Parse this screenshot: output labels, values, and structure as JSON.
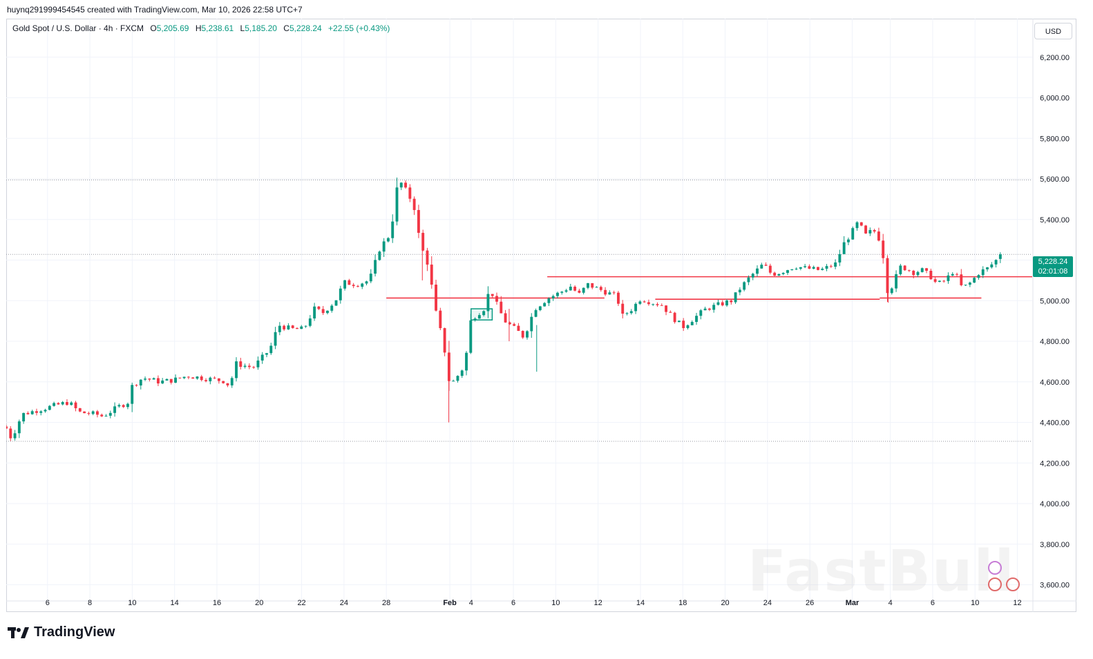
{
  "header": {
    "attribution": "huynq291999454545 created with TradingView.com, Mar 10, 2026 22:58 UTC+7"
  },
  "legend": {
    "symbol": "Gold Spot / U.S. Dollar · 4h · FXCM",
    "o_label": "O",
    "o_value": "5,205.69",
    "h_label": "H",
    "h_value": "5,238.61",
    "l_label": "L",
    "l_value": "5,185.20",
    "c_label": "C",
    "c_value": "5,228.24",
    "change": "+22.55 (+0.43%)"
  },
  "currency": "USD",
  "last_price": {
    "value": "5,228.24",
    "countdown": "02:01:08"
  },
  "brand": "TradingView",
  "watermark": "FastBull",
  "colors": {
    "up": "#089981",
    "down": "#f23645",
    "level": "#f23645",
    "grid": "#f0f3fa",
    "dotted": "#9598a1"
  },
  "chart_data": {
    "type": "candlestick",
    "title": "Gold Spot / U.S. Dollar · 4h · FXCM",
    "ylim": [
      3520,
      6390
    ],
    "y_ticks": [
      3600,
      3800,
      4000,
      4200,
      4400,
      4600,
      4800,
      5000,
      5200,
      5400,
      5600,
      5800,
      6000,
      6200
    ],
    "y_tick_labels": [
      "3,600.00",
      "3,800.00",
      "4,000.00",
      "4,200.00",
      "4,400.00",
      "4,600.00",
      "4,800.00",
      "5,000.00",
      "5,200.00",
      "5,400.00",
      "5,600.00",
      "5,800.00",
      "6,000.00",
      "6,200.00"
    ],
    "x_ticks": [
      {
        "label": "6",
        "t": 2
      },
      {
        "label": "8",
        "t": 4
      },
      {
        "label": "10",
        "t": 6
      },
      {
        "label": "14",
        "t": 8
      },
      {
        "label": "16",
        "t": 10
      },
      {
        "label": "20",
        "t": 12
      },
      {
        "label": "22",
        "t": 14
      },
      {
        "label": "24",
        "t": 16
      },
      {
        "label": "28",
        "t": 18
      },
      {
        "label": "Feb",
        "t": 21,
        "bold": true
      },
      {
        "label": "4",
        "t": 22
      },
      {
        "label": "6",
        "t": 24
      },
      {
        "label": "10",
        "t": 26
      },
      {
        "label": "12",
        "t": 28
      },
      {
        "label": "14",
        "t": 30
      },
      {
        "label": "18",
        "t": 32
      },
      {
        "label": "20",
        "t": 34
      },
      {
        "label": "24",
        "t": 36
      },
      {
        "label": "26",
        "t": 38
      },
      {
        "label": "Mar",
        "t": 40,
        "bold": true
      },
      {
        "label": "4",
        "t": 41.8
      },
      {
        "label": "6",
        "t": 43.8
      },
      {
        "label": "10",
        "t": 45.8
      },
      {
        "label": "12",
        "t": 47.8
      }
    ],
    "x_range": [
      0.05,
      48.5
    ],
    "anchors": [
      [
        0.0,
        4380
      ],
      [
        0.3,
        4320
      ],
      [
        0.8,
        4440
      ],
      [
        1.5,
        4460
      ],
      [
        2.6,
        4490
      ],
      [
        3.0,
        4500
      ],
      [
        3.5,
        4450
      ],
      [
        4.3,
        4440
      ],
      [
        4.6,
        4430
      ],
      [
        5.4,
        4480
      ],
      [
        5.8,
        4500
      ],
      [
        6.0,
        4580
      ],
      [
        6.5,
        4620
      ],
      [
        7.3,
        4600
      ],
      [
        8.0,
        4610
      ],
      [
        8.6,
        4630
      ],
      [
        9.6,
        4615
      ],
      [
        10.3,
        4605
      ],
      [
        10.6,
        4580
      ],
      [
        10.9,
        4690
      ],
      [
        11.7,
        4670
      ],
      [
        12.5,
        4760
      ],
      [
        12.9,
        4880
      ],
      [
        13.5,
        4860
      ],
      [
        14.1,
        4860
      ],
      [
        14.6,
        4960
      ],
      [
        15.0,
        4940
      ],
      [
        15.6,
        5000
      ],
      [
        16.0,
        5090
      ],
      [
        16.6,
        5080
      ],
      [
        17.2,
        5100
      ],
      [
        17.7,
        5260
      ],
      [
        18.2,
        5330
      ],
      [
        18.5,
        5550
      ],
      [
        18.7,
        5580
      ],
      [
        19.0,
        5530
      ],
      [
        19.3,
        5470
      ],
      [
        19.6,
        5280
      ],
      [
        20.0,
        5170
      ],
      [
        20.3,
        4960
      ],
      [
        20.7,
        4790
      ],
      [
        21.0,
        4580
      ],
      [
        21.3,
        4620
      ],
      [
        21.7,
        4680
      ],
      [
        22.0,
        4910
      ],
      [
        22.6,
        4960
      ],
      [
        22.9,
        5060
      ],
      [
        23.3,
        4960
      ],
      [
        23.6,
        4900
      ],
      [
        24.2,
        4850
      ],
      [
        24.5,
        4820
      ],
      [
        25.0,
        4960
      ],
      [
        25.6,
        5010
      ],
      [
        26.2,
        5040
      ],
      [
        26.7,
        5070
      ],
      [
        27.1,
        5030
      ],
      [
        27.5,
        5080
      ],
      [
        28.2,
        5050
      ],
      [
        28.9,
        5020
      ],
      [
        29.1,
        4920
      ],
      [
        29.6,
        4960
      ],
      [
        30.0,
        5010
      ],
      [
        30.6,
        4990
      ],
      [
        31.0,
        4980
      ],
      [
        31.5,
        4920
      ],
      [
        32.0,
        4870
      ],
      [
        32.6,
        4920
      ],
      [
        33.1,
        4960
      ],
      [
        33.7,
        4980
      ],
      [
        34.3,
        5000
      ],
      [
        34.7,
        5060
      ],
      [
        35.2,
        5120
      ],
      [
        35.8,
        5180
      ],
      [
        36.2,
        5130
      ],
      [
        36.6,
        5140
      ],
      [
        37.3,
        5170
      ],
      [
        37.8,
        5160
      ],
      [
        38.5,
        5150
      ],
      [
        39.2,
        5180
      ],
      [
        39.6,
        5280
      ],
      [
        40.0,
        5340
      ],
      [
        40.3,
        5390
      ],
      [
        40.6,
        5320
      ],
      [
        41.0,
        5350
      ],
      [
        41.3,
        5300
      ],
      [
        41.5,
        5200
      ],
      [
        41.7,
        5020
      ],
      [
        41.9,
        5080
      ],
      [
        42.3,
        5170
      ],
      [
        42.9,
        5140
      ],
      [
        43.3,
        5150
      ],
      [
        43.7,
        5120
      ],
      [
        44.0,
        5080
      ],
      [
        44.4,
        5100
      ],
      [
        44.8,
        5150
      ],
      [
        45.2,
        5060
      ],
      [
        45.6,
        5090
      ],
      [
        46.0,
        5140
      ],
      [
        46.4,
        5160
      ],
      [
        46.8,
        5200
      ],
      [
        47.15,
        5228.24
      ]
    ],
    "ohlc_last": {
      "open": 5205.69,
      "high": 5238.61,
      "low": 5185.2,
      "close": 5228.24
    },
    "levels": [
      {
        "name": "dotted-high",
        "y": 5595,
        "style": "dotted"
      },
      {
        "name": "dotted-last",
        "y": 5228.24,
        "style": "dotted"
      },
      {
        "name": "dotted-low",
        "y": 4307,
        "style": "dotted"
      },
      {
        "name": "resistance",
        "y": 5118,
        "t_start": 25.6,
        "t_end": 48.5,
        "style": "solid"
      },
      {
        "name": "support-left",
        "y": 5013,
        "t_start": 18.0,
        "t_end": 28.3,
        "style": "solid"
      },
      {
        "name": "support-mid",
        "y": 5007,
        "t_start": 30.7,
        "t_end": 41.3,
        "style": "solid"
      },
      {
        "name": "support-right",
        "y": 5013,
        "t_start": 41.3,
        "t_end": 46.1,
        "style": "solid"
      }
    ],
    "highlight_box": {
      "t_start": 22.0,
      "t_end": 23.0,
      "y_low": 4905,
      "y_high": 4960
    }
  }
}
